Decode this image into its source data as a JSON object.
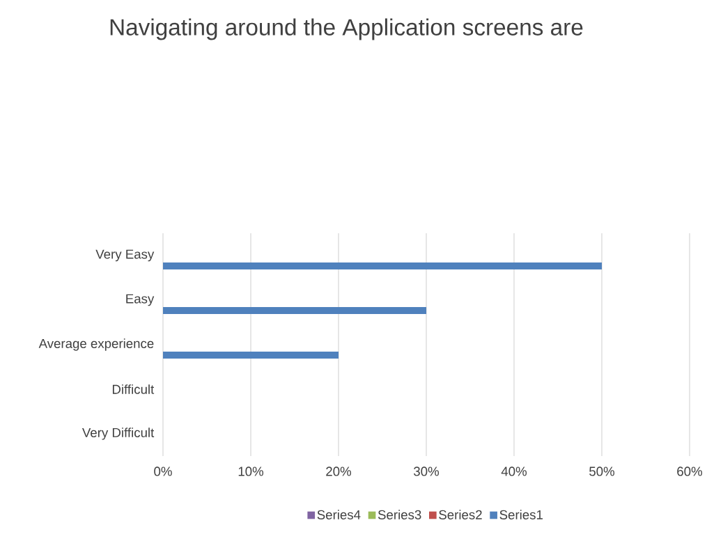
{
  "chart_data": {
    "type": "bar",
    "orientation": "horizontal",
    "title": "Navigating around the Application screens are",
    "categories": [
      "Very Easy",
      "Easy",
      "Average experience",
      "Difficult",
      "Very Difficult"
    ],
    "series": [
      {
        "name": "Series1",
        "color": "#4f81bd",
        "values": [
          50,
          30,
          20,
          null,
          null
        ]
      },
      {
        "name": "Series2",
        "color": "#c0504d",
        "values": [
          null,
          null,
          null,
          null,
          null
        ]
      },
      {
        "name": "Series3",
        "color": "#9bbb59",
        "values": [
          null,
          null,
          null,
          null,
          null
        ]
      },
      {
        "name": "Series4",
        "color": "#8064a2",
        "values": [
          null,
          null,
          null,
          null,
          null
        ]
      }
    ],
    "xlim": [
      0,
      60
    ],
    "xticks": [
      {
        "value": 0,
        "label": "0%"
      },
      {
        "value": 10,
        "label": "10%"
      },
      {
        "value": 20,
        "label": "20%"
      },
      {
        "value": 30,
        "label": "30%"
      },
      {
        "value": 40,
        "label": "40%"
      },
      {
        "value": 50,
        "label": "50%"
      },
      {
        "value": 60,
        "label": "60%"
      }
    ],
    "grid": "x",
    "legend": "bottom"
  }
}
